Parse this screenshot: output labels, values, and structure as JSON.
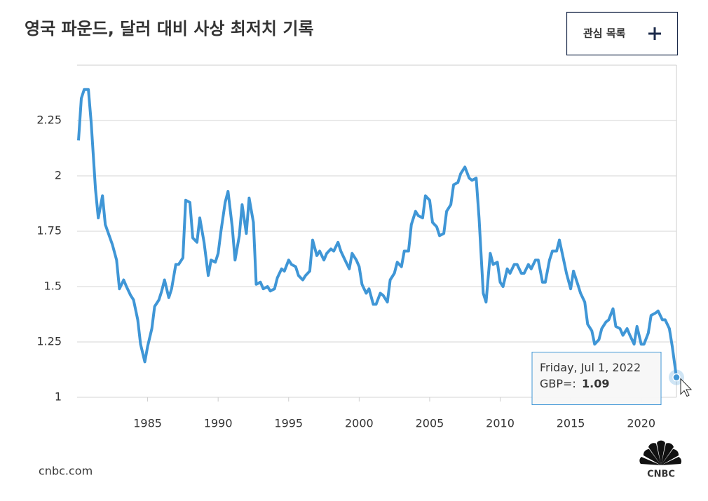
{
  "chart_data": {
    "type": "line",
    "title": "영국 파운드, 달러 대비 사상 최저치 기록",
    "button_label": "관심 목록",
    "source": "cnbc.com",
    "logo_text": "CNBC",
    "tooltip_date": "Friday, Jul 1, 2022",
    "series": [
      {
        "name": "GBP=:",
        "color": "#3f96d6",
        "x": [
          1980.1,
          1980.3,
          1980.5,
          1980.8,
          1981.0,
          1981.3,
          1981.5,
          1981.8,
          1982.0,
          1982.5,
          1982.8,
          1983.0,
          1983.3,
          1983.5,
          1983.8,
          1984.0,
          1984.3,
          1984.5,
          1984.8,
          1985.0,
          1985.3,
          1985.5,
          1985.8,
          1986.0,
          1986.2,
          1986.5,
          1986.7,
          1987.0,
          1987.2,
          1987.5,
          1987.7,
          1988.0,
          1988.2,
          1988.5,
          1988.7,
          1989.0,
          1989.3,
          1989.5,
          1989.8,
          1990.0,
          1990.2,
          1990.5,
          1990.7,
          1991.0,
          1991.2,
          1991.5,
          1991.7,
          1992.0,
          1992.2,
          1992.5,
          1992.7,
          1993.0,
          1993.2,
          1993.5,
          1993.7,
          1994.0,
          1994.2,
          1994.5,
          1994.7,
          1995.0,
          1995.2,
          1995.5,
          1995.7,
          1996.0,
          1996.2,
          1996.5,
          1996.7,
          1997.0,
          1997.2,
          1997.5,
          1997.7,
          1998.0,
          1998.2,
          1998.5,
          1998.7,
          1999.0,
          1999.3,
          1999.5,
          1999.8,
          2000.0,
          2000.2,
          2000.5,
          2000.7,
          2001.0,
          2001.2,
          2001.5,
          2001.7,
          2002.0,
          2002.2,
          2002.5,
          2002.7,
          2003.0,
          2003.2,
          2003.5,
          2003.7,
          2004.0,
          2004.2,
          2004.5,
          2004.7,
          2005.0,
          2005.2,
          2005.5,
          2005.7,
          2006.0,
          2006.2,
          2006.5,
          2006.7,
          2007.0,
          2007.2,
          2007.5,
          2007.8,
          2008.0,
          2008.3,
          2008.5,
          2008.8,
          2009.0,
          2009.3,
          2009.5,
          2009.8,
          2010.0,
          2010.2,
          2010.5,
          2010.7,
          2011.0,
          2011.2,
          2011.5,
          2011.7,
          2012.0,
          2012.2,
          2012.5,
          2012.7,
          2013.0,
          2013.2,
          2013.5,
          2013.7,
          2014.0,
          2014.2,
          2014.5,
          2014.7,
          2015.0,
          2015.2,
          2015.5,
          2015.7,
          2016.0,
          2016.2,
          2016.5,
          2016.7,
          2017.0,
          2017.2,
          2017.5,
          2017.7,
          2018.0,
          2018.2,
          2018.5,
          2018.7,
          2019.0,
          2019.2,
          2019.5,
          2019.7,
          2020.0,
          2020.2,
          2020.5,
          2020.7,
          2021.0,
          2021.2,
          2021.5,
          2021.7,
          2022.0,
          2022.2,
          2022.5
        ],
        "values": [
          2.16,
          2.35,
          2.39,
          2.39,
          2.24,
          1.94,
          1.81,
          1.91,
          1.78,
          1.69,
          1.62,
          1.49,
          1.53,
          1.5,
          1.46,
          1.44,
          1.35,
          1.24,
          1.16,
          1.23,
          1.31,
          1.41,
          1.44,
          1.48,
          1.53,
          1.45,
          1.49,
          1.6,
          1.6,
          1.63,
          1.89,
          1.88,
          1.72,
          1.7,
          1.81,
          1.7,
          1.55,
          1.62,
          1.61,
          1.65,
          1.75,
          1.88,
          1.93,
          1.77,
          1.62,
          1.73,
          1.87,
          1.74,
          1.9,
          1.79,
          1.51,
          1.52,
          1.49,
          1.5,
          1.48,
          1.49,
          1.54,
          1.58,
          1.57,
          1.62,
          1.6,
          1.59,
          1.55,
          1.53,
          1.55,
          1.57,
          1.71,
          1.64,
          1.66,
          1.62,
          1.65,
          1.67,
          1.66,
          1.7,
          1.66,
          1.62,
          1.58,
          1.65,
          1.62,
          1.59,
          1.51,
          1.47,
          1.49,
          1.42,
          1.42,
          1.47,
          1.46,
          1.43,
          1.53,
          1.56,
          1.61,
          1.59,
          1.66,
          1.66,
          1.78,
          1.84,
          1.82,
          1.81,
          1.91,
          1.89,
          1.79,
          1.77,
          1.73,
          1.74,
          1.84,
          1.87,
          1.96,
          1.97,
          2.01,
          2.04,
          1.99,
          1.98,
          1.99,
          1.81,
          1.47,
          1.43,
          1.65,
          1.6,
          1.61,
          1.52,
          1.5,
          1.58,
          1.56,
          1.6,
          1.6,
          1.56,
          1.56,
          1.6,
          1.58,
          1.62,
          1.62,
          1.52,
          1.52,
          1.62,
          1.66,
          1.66,
          1.71,
          1.62,
          1.56,
          1.49,
          1.57,
          1.51,
          1.47,
          1.43,
          1.33,
          1.3,
          1.24,
          1.26,
          1.31,
          1.34,
          1.35,
          1.4,
          1.32,
          1.31,
          1.28,
          1.31,
          1.28,
          1.24,
          1.32,
          1.24,
          1.24,
          1.29,
          1.37,
          1.38,
          1.39,
          1.35,
          1.35,
          1.31,
          1.23,
          1.09
        ]
      }
    ],
    "xlim": [
      1980,
      2022.5
    ],
    "xticks": [
      1985,
      1990,
      1995,
      2000,
      2005,
      2010,
      2015,
      2020
    ],
    "ylim": [
      1,
      2.5
    ],
    "yticks": [
      1,
      1.25,
      1.5,
      1.75,
      2,
      2.25
    ],
    "grid": true
  }
}
